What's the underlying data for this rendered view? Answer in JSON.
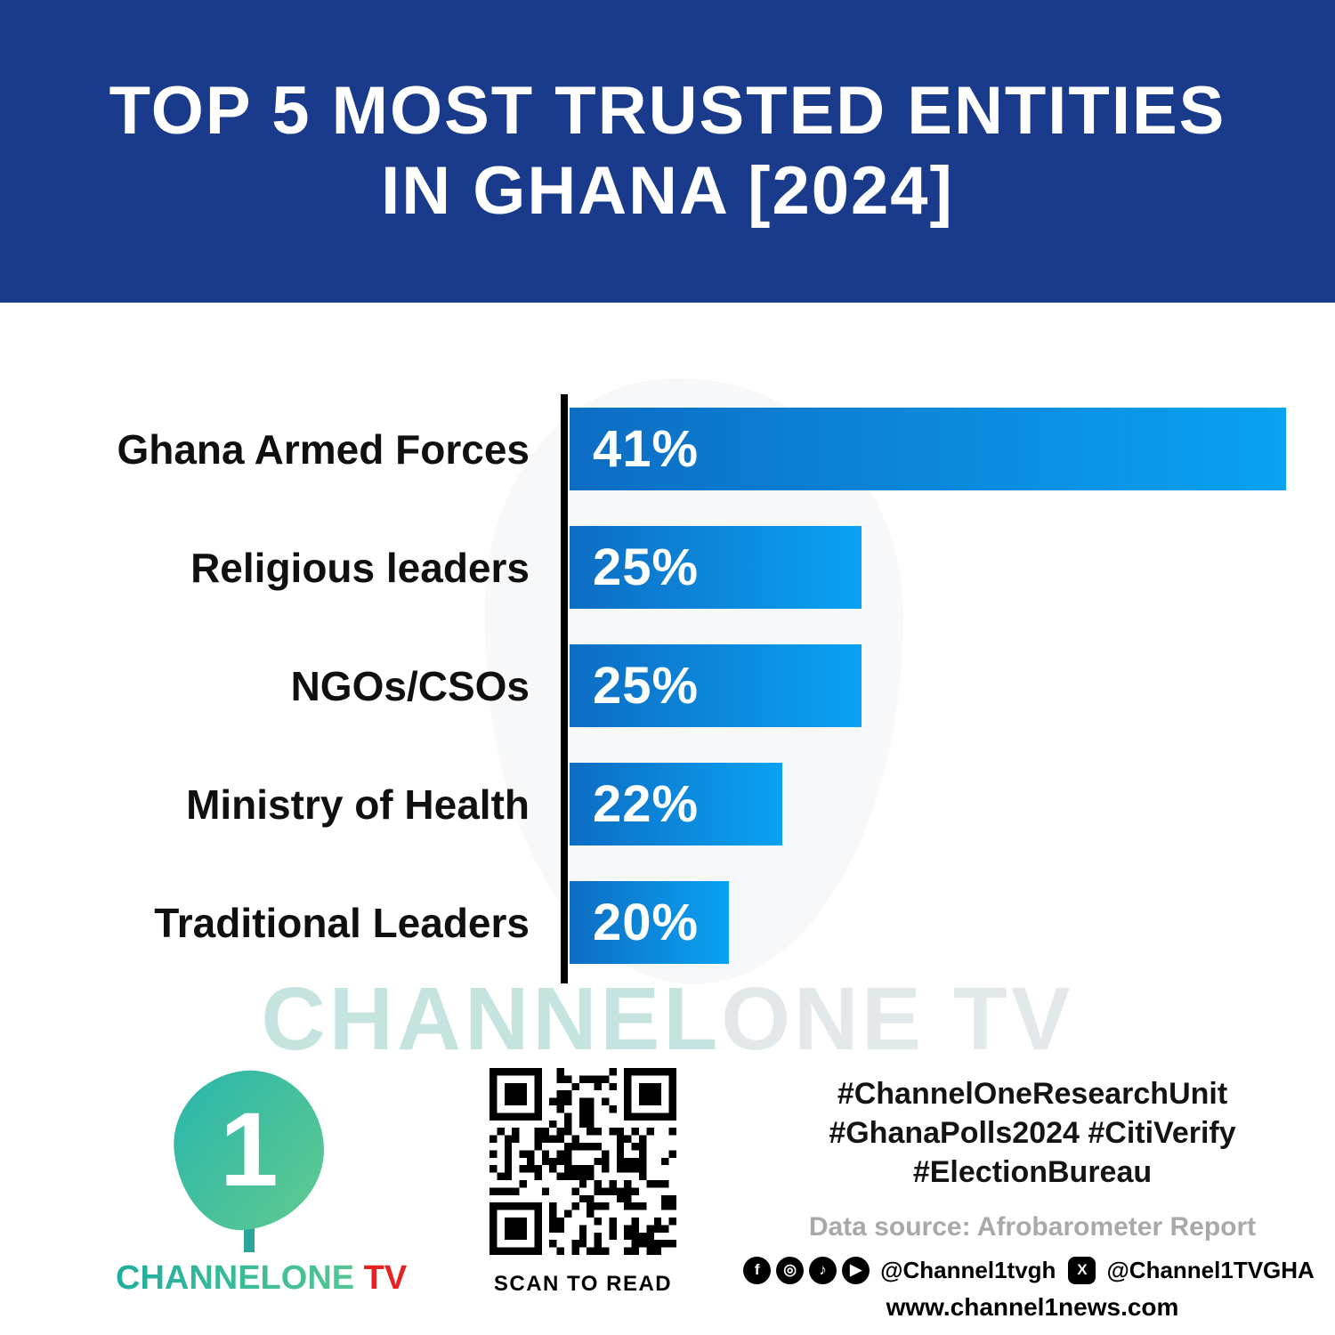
{
  "header": {
    "title_line1": "TOP 5 MOST TRUSTED ENTITIES",
    "title_line2": "IN GHANA [2024]"
  },
  "chart_data": {
    "type": "bar",
    "orientation": "horizontal",
    "title": "TOP 5 MOST TRUSTED ENTITIES IN GHANA [2024]",
    "categories": [
      "Ghana Armed Forces",
      "Religious leaders",
      "NGOs/CSOs",
      "Ministry of Health",
      "Traditional Leaders"
    ],
    "values": [
      41,
      25,
      25,
      22,
      20
    ],
    "value_labels": [
      "41%",
      "25%",
      "25%",
      "22%",
      "20%"
    ],
    "value_suffix": "%",
    "xlim": [
      0,
      41
    ],
    "grid": false,
    "legend": false,
    "bar_color_start": "#0d6dc3",
    "bar_color_end": "#0aa2f2"
  },
  "watermark": {
    "part1": "CHANNEL",
    "part2": "ONE TV"
  },
  "footer": {
    "brand": {
      "logo_digit": "1",
      "channelone": "CHANNELONE",
      "tv": " TV"
    },
    "qr_caption": "SCAN TO READ",
    "hashtags": [
      "#ChannelOneResearchUnit",
      "#GhanaPolls2024 #CitiVerify",
      "#ElectionBureau"
    ],
    "data_source": "Data source: Afrobarometer Report",
    "social_icons": [
      "facebook-icon",
      "instagram-icon",
      "tiktok-icon",
      "youtube-icon"
    ],
    "social_handle_1": "@Channel1tvgh",
    "social_handle_2": "@Channel1TVGHA",
    "website": "www.channel1news.com"
  },
  "colors": {
    "header_bg": "#1a3a8c",
    "axis": "#000000",
    "brand_teal": "#1fae9e",
    "brand_red": "#e62222",
    "muted_gray": "#a9a9a9"
  }
}
